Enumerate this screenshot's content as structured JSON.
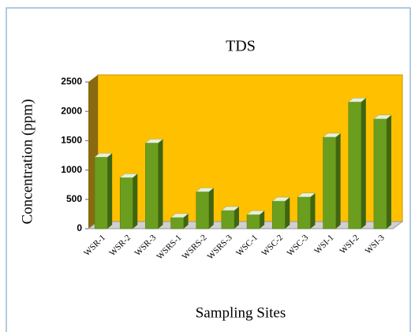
{
  "chart_data": {
    "type": "bar3d",
    "title": "TDS",
    "categories": [
      "WSR-1",
      "WSR-2",
      "WSR-3",
      "WSRS-1",
      "WSRS-2",
      "WSRS-3",
      "WSC-1",
      "WSC-2",
      "WSC-3",
      "WSI-1",
      "WSI-2",
      "WSI-3"
    ],
    "values": [
      1220,
      870,
      1460,
      190,
      630,
      310,
      240,
      470,
      540,
      1560,
      2160,
      1870
    ],
    "color": "#6b9e1f",
    "wall_color": "#ffc000",
    "ylabel": "Concentration (ppm)",
    "xlabel": "Sampling Sites",
    "ylim": [
      0,
      2500
    ],
    "yticks": [
      0,
      500,
      1000,
      1500,
      2000,
      2500
    ],
    "grid": false
  }
}
